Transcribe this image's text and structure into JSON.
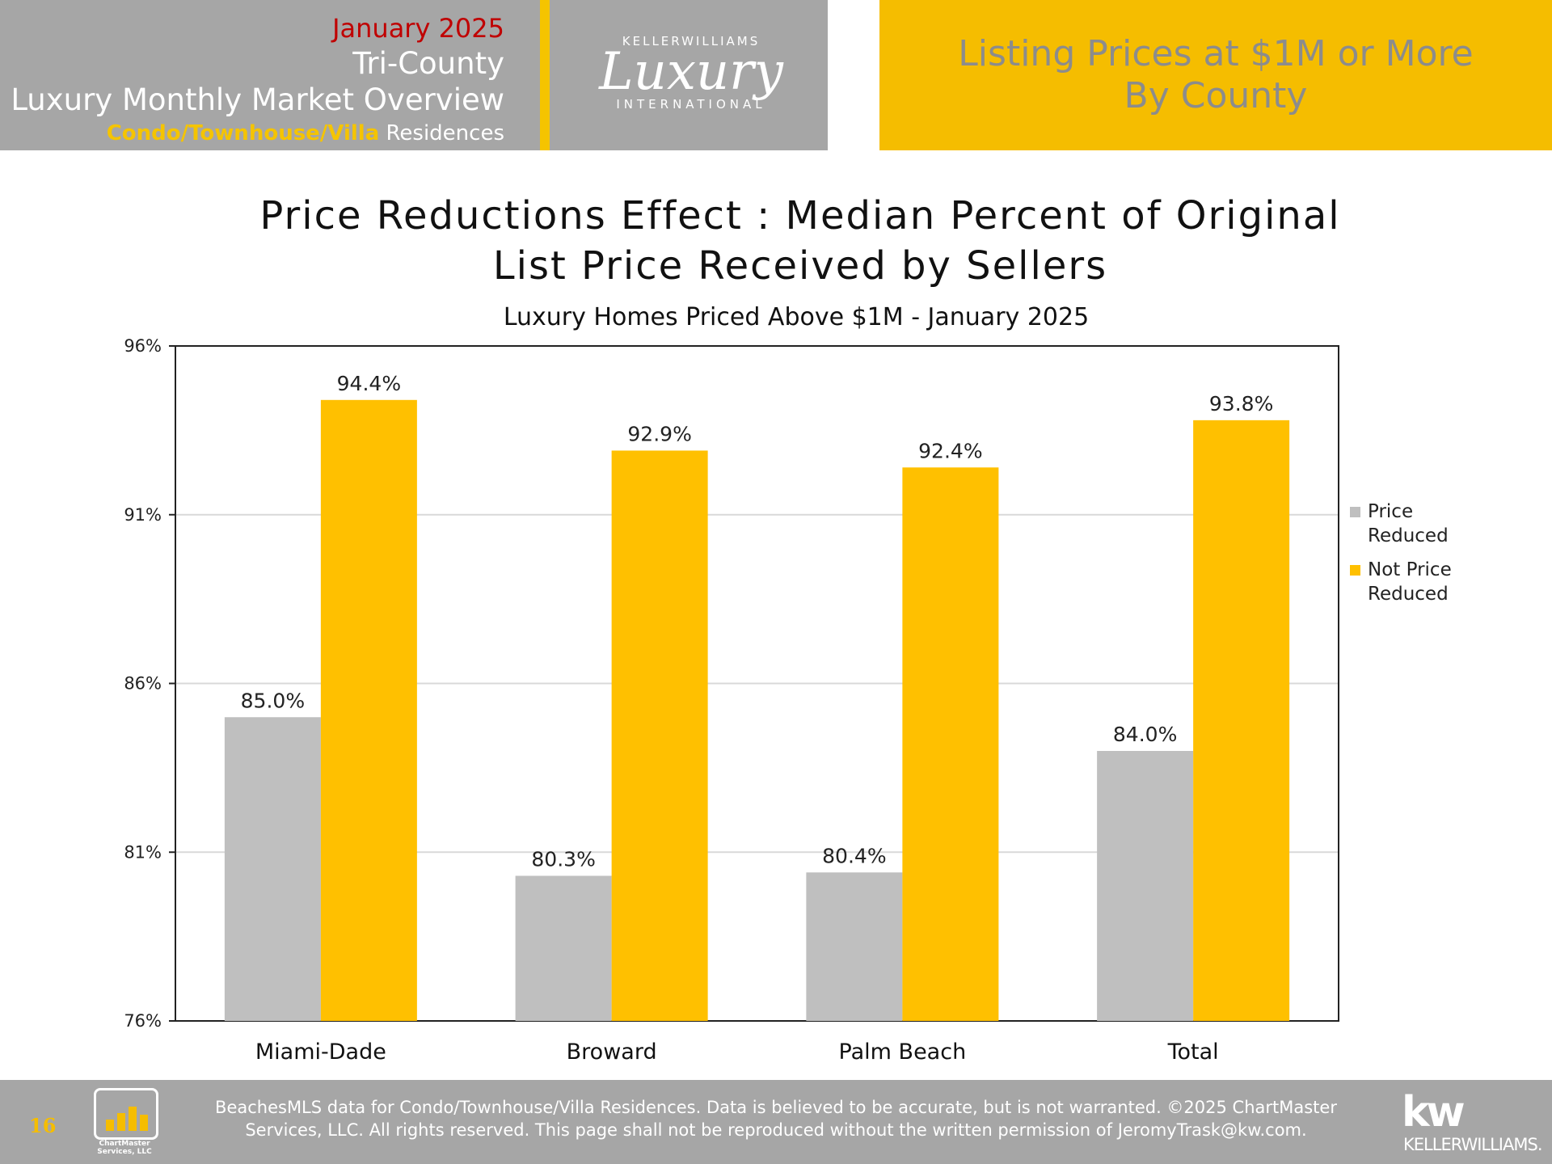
{
  "header": {
    "month": "January 2025",
    "region": "Tri-County",
    "title": "Luxury Monthly Market Overview",
    "property_type_accent": "Condo/Townhouse/Villa",
    "property_type_rest": " Residences",
    "logo_top": "KELLERWILLIAMS",
    "logo_script": "Luxury",
    "logo_bottom": "INTERNATIONAL",
    "right_line1": "Listing Prices at $1M or More",
    "right_line2": "By County"
  },
  "chart_data": {
    "type": "bar",
    "title_line1": "Price Reductions Effect : Median Percent of Original",
    "title_line2": "List Price Received by Sellers",
    "subtitle": "Luxury Homes Priced Above $1M - January 2025",
    "categories": [
      "Miami-Dade",
      "Broward",
      "Palm Beach",
      "Total"
    ],
    "series": [
      {
        "name": "Price Reduced",
        "values": [
          85.0,
          80.3,
          80.4,
          84.0
        ],
        "labels": [
          "85.0%",
          "80.3%",
          "80.4%",
          "84.0%"
        ],
        "color": "#bfbfbf"
      },
      {
        "name": "Not Price Reduced",
        "values": [
          94.4,
          92.9,
          92.4,
          93.8
        ],
        "labels": [
          "94.4%",
          "92.9%",
          "92.4%",
          "93.8%"
        ],
        "color": "#ffc000"
      }
    ],
    "ylim": [
      76,
      96
    ],
    "yticks": [
      96,
      91,
      86,
      81,
      76
    ],
    "ytick_labels": [
      "96%",
      "91%",
      "86%",
      "81%",
      "76%"
    ],
    "grid": true,
    "legend_position": "right"
  },
  "legend": {
    "item1_line1": "Price",
    "item1_line2": "Reduced",
    "item2_line1": "Not Price",
    "item2_line2": "Reduced"
  },
  "footer": {
    "page_number": "16",
    "logo_line1": "ChartMaster",
    "logo_line2": "Services, LLC",
    "line1": "BeachesMLS data for Condo/Townhouse/Villa Residences.  Data is believed to be accurate, but is not warranted.   ©2025  ChartMaster",
    "line2": "Services, LLC.  All rights reserved. This page shall not be reproduced without the written permission of JeromyTrask@kw.com.",
    "kw_mark": "kw",
    "kw_name": "KELLERWILLIAMS."
  }
}
